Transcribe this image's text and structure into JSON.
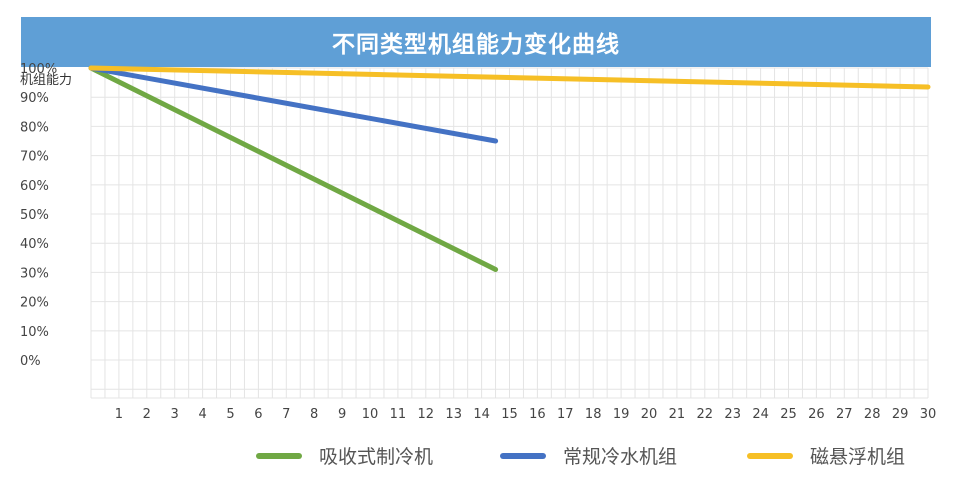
{
  "chart_data": {
    "type": "line",
    "title": "不同类型机组能力变化曲线",
    "ylabel": "机组能力",
    "xlabel": "",
    "x": [
      0,
      1,
      2,
      3,
      4,
      5,
      6,
      7,
      8,
      9,
      10,
      11,
      12,
      13,
      14,
      15,
      16,
      17,
      18,
      19,
      20,
      21,
      22,
      23,
      24,
      25,
      26,
      27,
      28,
      29,
      30
    ],
    "x_tick_labels": [
      "1",
      "2",
      "3",
      "4",
      "5",
      "6",
      "7",
      "8",
      "9",
      "10",
      "11",
      "12",
      "13",
      "14",
      "15",
      "16",
      "17",
      "18",
      "19",
      "20",
      "21",
      "22",
      "23",
      "24",
      "25",
      "26",
      "27",
      "28",
      "29",
      "30"
    ],
    "y_tick_labels": [
      "100%",
      "90%",
      "80%",
      "70%",
      "60%",
      "50%",
      "40%",
      "30%",
      "20%",
      "10%",
      "0%"
    ],
    "xlim": [
      0,
      30
    ],
    "ylim": [
      -0.13,
      1.0
    ],
    "grid": true,
    "legend_position": "bottom",
    "series": [
      {
        "name": "吸收式制冷机",
        "color": "#70a844",
        "points": [
          [
            0,
            1.0
          ],
          [
            14.5,
            0.31
          ]
        ]
      },
      {
        "name": "常规冷水机组",
        "color": "#4472c4",
        "points": [
          [
            0,
            1.0
          ],
          [
            14.5,
            0.75
          ]
        ]
      },
      {
        "name": "磁悬浮机组",
        "color": "#f6bf26",
        "points": [
          [
            0,
            1.0
          ],
          [
            30,
            0.935
          ]
        ]
      }
    ]
  }
}
